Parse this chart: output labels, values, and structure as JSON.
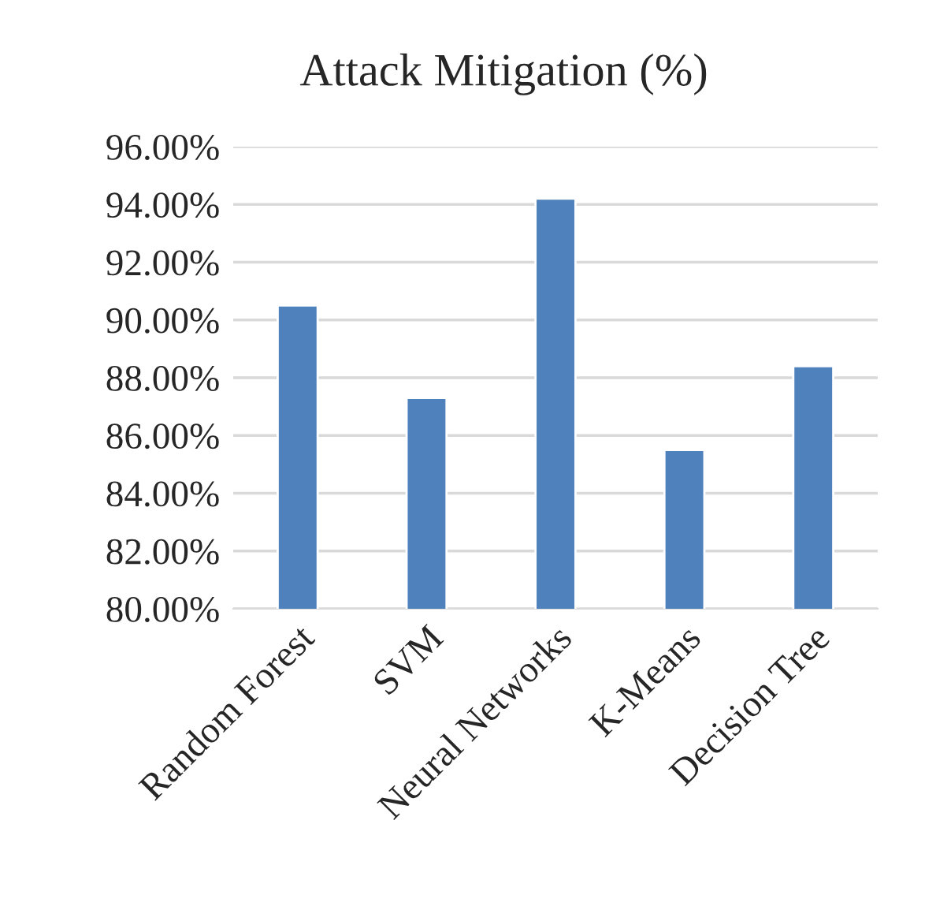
{
  "chart_data": {
    "type": "bar",
    "title": "Attack Mitigation (%)",
    "categories": [
      "Random Forest",
      "SVM",
      "Neural Networks",
      "K-Means",
      "Decision Tree"
    ],
    "values": [
      90.5,
      87.3,
      94.2,
      85.5,
      88.4
    ],
    "color": "#4f81bd",
    "ylim": [
      80,
      96
    ],
    "yticks": [
      {
        "value": 80,
        "label": "80.00%"
      },
      {
        "value": 82,
        "label": "82.00%"
      },
      {
        "value": 84,
        "label": "84.00%"
      },
      {
        "value": 86,
        "label": "86.00%"
      },
      {
        "value": 88,
        "label": "88.00%"
      },
      {
        "value": 90,
        "label": "90.00%"
      },
      {
        "value": 92,
        "label": "92.00%"
      },
      {
        "value": 94,
        "label": "94.00%"
      },
      {
        "value": 96,
        "label": "96.00%"
      }
    ],
    "grid": "y"
  }
}
